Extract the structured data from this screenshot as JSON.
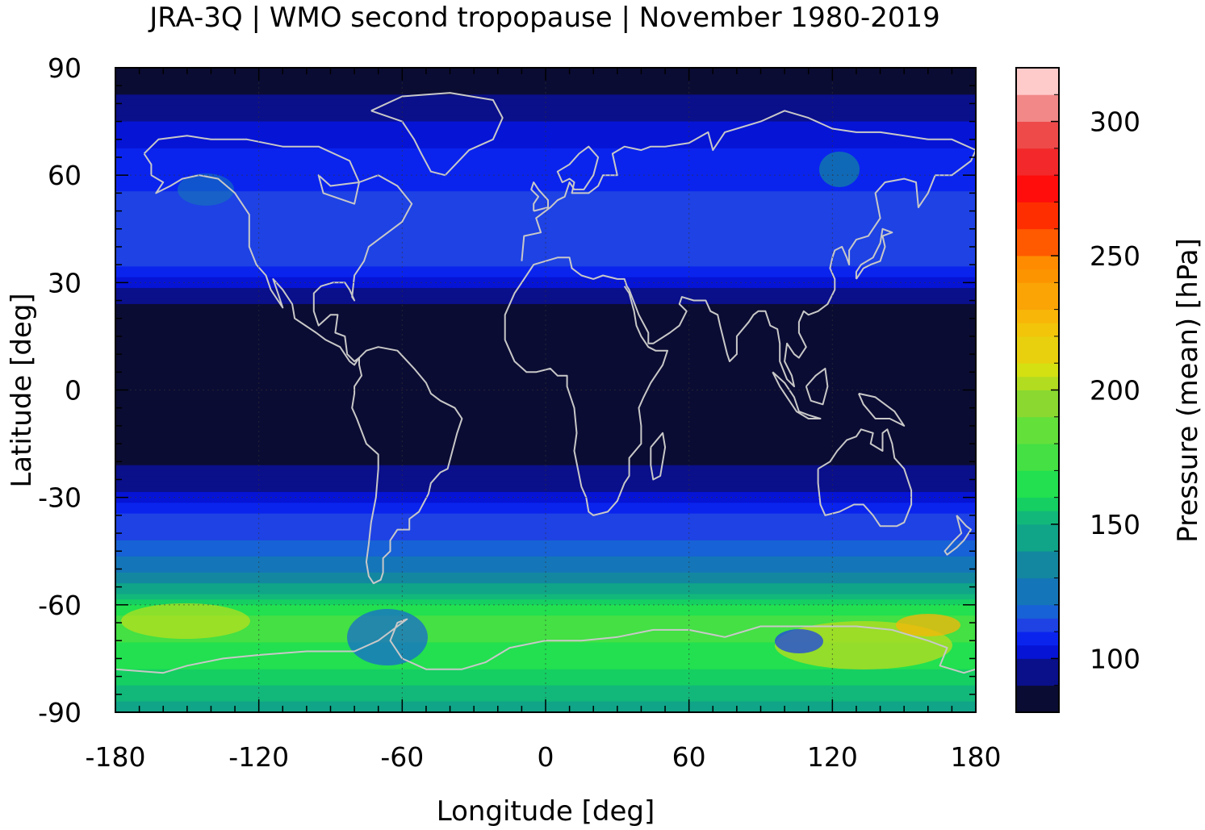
{
  "chart_data": {
    "type": "heatmap",
    "title": "JRA-3Q | WMO second tropopause | November 1980-2019",
    "xlabel": "Longitude [deg]",
    "ylabel": "Latitude [deg]",
    "xlim": [
      -180,
      180
    ],
    "ylim": [
      -90,
      90
    ],
    "x_ticks": [
      "-180",
      "-120",
      "-60",
      "0",
      "60",
      "120",
      "180"
    ],
    "y_ticks": [
      "90",
      "60",
      "30",
      "0",
      "-30",
      "-60",
      "-90"
    ],
    "x_tick_values": [
      -180,
      -120,
      -60,
      0,
      60,
      120,
      180
    ],
    "y_tick_values": [
      90,
      60,
      30,
      0,
      -30,
      -60,
      -90
    ],
    "grid": "dotted at major ticks",
    "overlay": "coastlines",
    "colorbar": {
      "label": "Pressure (mean) [hPa]",
      "range": [
        80,
        320
      ],
      "tick_values": [
        100,
        150,
        200,
        250,
        300
      ],
      "tick_labels": [
        "100",
        "150",
        "200",
        "250",
        "300"
      ],
      "bins": [
        {
          "from": 80,
          "to": 90,
          "color": "#0b0c33"
        },
        {
          "from": 90,
          "to": 100,
          "color": "#0a0f8a"
        },
        {
          "from": 100,
          "to": 105,
          "color": "#0614d6"
        },
        {
          "from": 105,
          "to": 110,
          "color": "#0a24ee"
        },
        {
          "from": 110,
          "to": 115,
          "color": "#1e42e4"
        },
        {
          "from": 115,
          "to": 120,
          "color": "#1762d6"
        },
        {
          "from": 120,
          "to": 130,
          "color": "#1476b8"
        },
        {
          "from": 130,
          "to": 140,
          "color": "#13879f"
        },
        {
          "from": 140,
          "to": 150,
          "color": "#10a488"
        },
        {
          "from": 150,
          "to": 155,
          "color": "#12b87a"
        },
        {
          "from": 155,
          "to": 160,
          "color": "#15cf62"
        },
        {
          "from": 160,
          "to": 170,
          "color": "#22e050"
        },
        {
          "from": 170,
          "to": 180,
          "color": "#44e044"
        },
        {
          "from": 180,
          "to": 190,
          "color": "#64e03a"
        },
        {
          "from": 190,
          "to": 200,
          "color": "#8ad830"
        },
        {
          "from": 200,
          "to": 205,
          "color": "#b2dc20"
        },
        {
          "from": 205,
          "to": 210,
          "color": "#d4e012"
        },
        {
          "from": 210,
          "to": 220,
          "color": "#e8d00e"
        },
        {
          "from": 220,
          "to": 225,
          "color": "#f2c40a"
        },
        {
          "from": 225,
          "to": 230,
          "color": "#f8b608"
        },
        {
          "from": 230,
          "to": 240,
          "color": "#faa406"
        },
        {
          "from": 240,
          "to": 245,
          "color": "#fc9400"
        },
        {
          "from": 245,
          "to": 250,
          "color": "#ff8c00"
        },
        {
          "from": 250,
          "to": 260,
          "color": "#ff5a00"
        },
        {
          "from": 260,
          "to": 270,
          "color": "#ff2e00"
        },
        {
          "from": 270,
          "to": 280,
          "color": "#ff0c0c"
        },
        {
          "from": 280,
          "to": 290,
          "color": "#f2282a"
        },
        {
          "from": 290,
          "to": 300,
          "color": "#ee4a4a"
        },
        {
          "from": 300,
          "to": 310,
          "color": "#f28888"
        },
        {
          "from": 310,
          "to": 320,
          "color": "#ffcaca"
        }
      ]
    },
    "zonal_profile": {
      "lat": [
        90,
        80,
        75,
        70,
        65,
        60,
        55,
        50,
        45,
        40,
        35,
        30,
        25,
        20,
        10,
        0,
        -10,
        -20,
        -25,
        -30,
        -35,
        -40,
        -45,
        -50,
        -55,
        -60,
        -65,
        -70,
        -75,
        -80,
        -85,
        -90
      ],
      "pressure_hpa": [
        85,
        92,
        100,
        104,
        106,
        108,
        110,
        112,
        113,
        112,
        110,
        103,
        92,
        85,
        84,
        84,
        84,
        88,
        96,
        103,
        110,
        113,
        118,
        128,
        142,
        160,
        175,
        170,
        162,
        158,
        152,
        148
      ]
    }
  }
}
